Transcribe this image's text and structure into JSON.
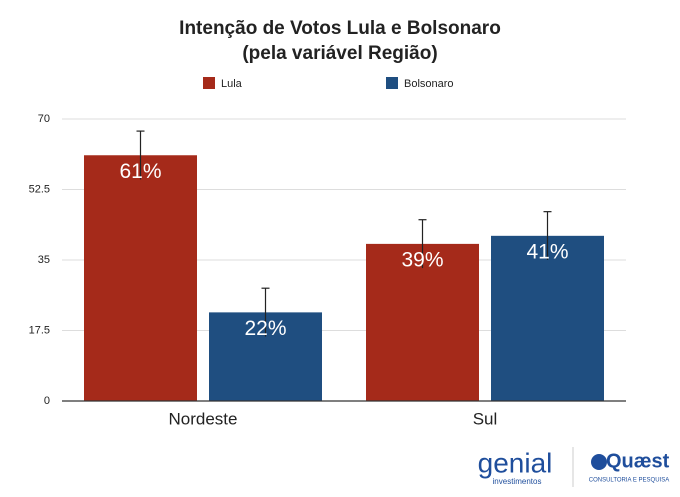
{
  "chart_data": {
    "type": "bar",
    "title": "Intenção de Votos Lula e Bolsonaro",
    "subtitle": "(pela variável Região)",
    "categories": [
      "Nordeste",
      "Sul"
    ],
    "series": [
      {
        "name": "Lula",
        "color": "#a52a1a",
        "values": [
          61,
          39
        ],
        "value_labels": [
          "61%",
          "39%"
        ],
        "errors": [
          6,
          6
        ]
      },
      {
        "name": "Bolsonaro",
        "color": "#1f4e80",
        "values": [
          22,
          41
        ],
        "value_labels": [
          "22%",
          "41%"
        ],
        "errors": [
          6,
          6
        ]
      }
    ],
    "ylim": [
      0,
      70
    ],
    "yticks": [
      0,
      17.5,
      35,
      52.5,
      70
    ],
    "grid": true,
    "legend": "top"
  },
  "logos": {
    "genial": "genial",
    "genial_sub": "investimentos",
    "quaest": "Quæst",
    "quaest_sub": "CONSULTORIA E PESQUISA"
  }
}
